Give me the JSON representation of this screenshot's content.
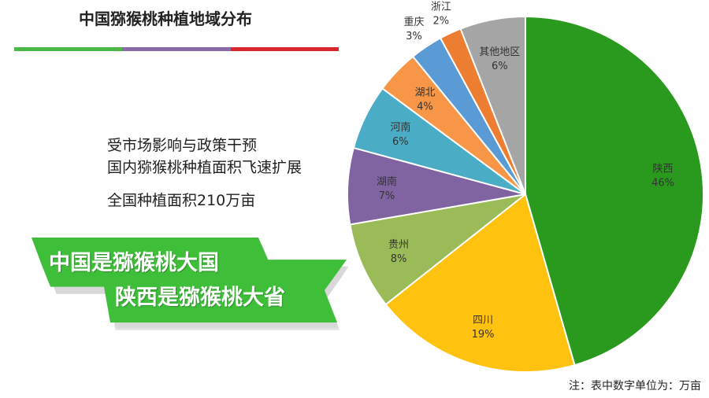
{
  "title": "中国猕猴桃种植地域分布",
  "title_bar_colors": [
    "#4cb848",
    "#8a6ba8",
    "#d9272e"
  ],
  "body": {
    "line1": "受市场影响与政策干预",
    "line2": "国内猕猴桃种植面积飞速扩展",
    "line3": "全国种植面积210万亩"
  },
  "banner": {
    "line1": "中国是猕猴桃大国",
    "line2": "陕西是猕猴桃大省",
    "color": "#3fbe3a"
  },
  "note": "注：表中数字单位为：万亩",
  "chart_data": {
    "type": "pie",
    "slices": [
      {
        "label": "陕西",
        "percent": 46,
        "value_text": "46%",
        "color": "#2a9a1e"
      },
      {
        "label": "四川",
        "percent": 19,
        "value_text": "19%",
        "color": "#ffc20e"
      },
      {
        "label": "贵州",
        "percent": 8,
        "value_text": "8%",
        "color": "#9bbb59"
      },
      {
        "label": "湖南",
        "percent": 7,
        "value_text": "7%",
        "color": "#8064a2"
      },
      {
        "label": "河南",
        "percent": 6,
        "value_text": "6%",
        "color": "#4bacc6"
      },
      {
        "label": "湖北",
        "percent": 4,
        "value_text": "4%",
        "color": "#f79646"
      },
      {
        "label": "重庆",
        "percent": 3,
        "value_text": "3%",
        "color": "#5b9bd5"
      },
      {
        "label": "浙江",
        "percent": 2,
        "value_text": "2%",
        "color": "#ed7d31"
      },
      {
        "label": "其他地区",
        "percent": 6,
        "value_text": "6%",
        "color": "#a5a5a5"
      }
    ]
  }
}
